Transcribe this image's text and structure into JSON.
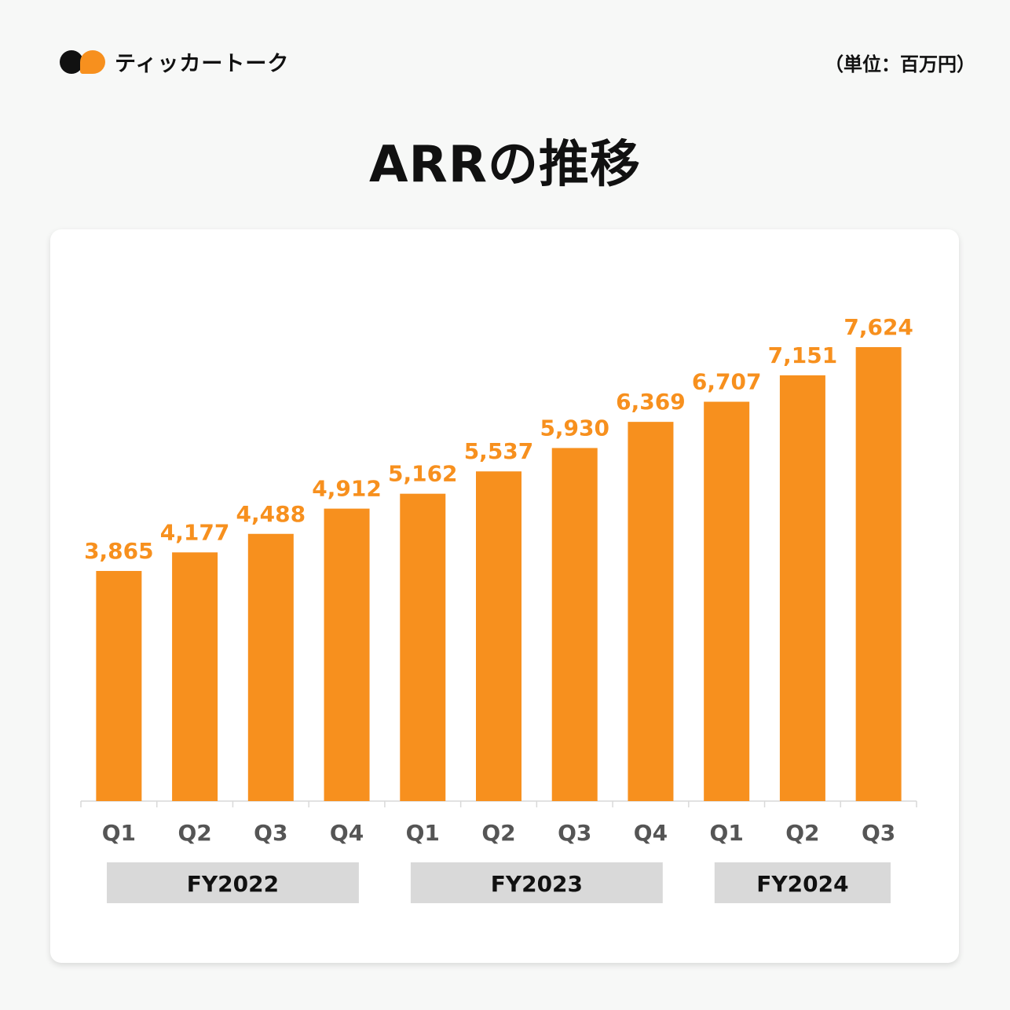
{
  "brand": {
    "name": "ティッカートーク"
  },
  "unit_label": "（単位：百万円）",
  "chart_data": {
    "type": "bar",
    "title": "ARRの推移",
    "categories": [
      "Q1",
      "Q2",
      "Q3",
      "Q4",
      "Q1",
      "Q2",
      "Q3",
      "Q4",
      "Q1",
      "Q2",
      "Q3"
    ],
    "values": [
      3865,
      4177,
      4488,
      4912,
      5162,
      5537,
      5930,
      6369,
      6707,
      7151,
      7624
    ],
    "value_labels": [
      "3,865",
      "4,177",
      "4,488",
      "4,912",
      "5,162",
      "5,537",
      "5,930",
      "6,369",
      "6,707",
      "7,151",
      "7,624"
    ],
    "groups": [
      {
        "label": "FY2022",
        "start": 0,
        "end": 3
      },
      {
        "label": "FY2023",
        "start": 4,
        "end": 7
      },
      {
        "label": "FY2024",
        "start": 8,
        "end": 10
      }
    ],
    "ylim": [
      0,
      7624
    ],
    "grid": false,
    "color": "#f7901e"
  }
}
